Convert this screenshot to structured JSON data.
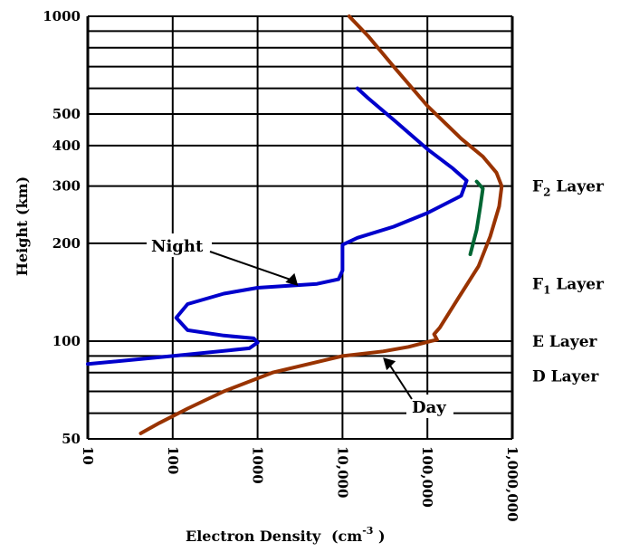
{
  "chart_data": {
    "type": "line",
    "xlabel": "Electron Density",
    "xlabel_unit_base": "(cm",
    "xlabel_unit_sup": "-3",
    "xlabel_unit_end": " )",
    "ylabel": "Height (km)",
    "x_scale": "log",
    "y_scale": "log",
    "xlim": [
      10,
      1000000
    ],
    "ylim": [
      50,
      1000
    ],
    "x_ticks": [
      {
        "value": 10,
        "label": "10"
      },
      {
        "value": 100,
        "label": "100"
      },
      {
        "value": 1000,
        "label": "1000"
      },
      {
        "value": 10000,
        "label": "10,000"
      },
      {
        "value": 100000,
        "label": "100,000"
      },
      {
        "value": 1000000,
        "label": "1,000,000"
      }
    ],
    "y_ticks": [
      {
        "value": 50,
        "label": "50"
      },
      {
        "value": 100,
        "label": "100"
      },
      {
        "value": 200,
        "label": "200"
      },
      {
        "value": 300,
        "label": "300"
      },
      {
        "value": 400,
        "label": "400"
      },
      {
        "value": 500,
        "label": "500"
      },
      {
        "value": 1000,
        "label": "1000"
      }
    ],
    "y_gridlines": [
      50,
      60,
      70,
      80,
      90,
      100,
      200,
      300,
      400,
      500,
      600,
      700,
      800,
      900,
      1000
    ],
    "grid": "horizontal",
    "series": [
      {
        "name": "Day",
        "color": "#993300",
        "points": [
          [
            42,
            52
          ],
          [
            70,
            56
          ],
          [
            150,
            62
          ],
          [
            400,
            70
          ],
          [
            1500,
            80
          ],
          [
            10000,
            90
          ],
          [
            30000,
            93
          ],
          [
            60000,
            96
          ],
          [
            110000,
            100
          ],
          [
            130000,
            101
          ],
          [
            120000,
            105
          ],
          [
            140000,
            110
          ],
          [
            250000,
            140
          ],
          [
            400000,
            170
          ],
          [
            550000,
            210
          ],
          [
            700000,
            260
          ],
          [
            750000,
            300
          ],
          [
            650000,
            330
          ],
          [
            450000,
            370
          ],
          [
            250000,
            420
          ],
          [
            100000,
            530
          ],
          [
            40000,
            700
          ],
          [
            20000,
            870
          ],
          [
            12000,
            1000
          ]
        ]
      },
      {
        "name": "Night",
        "color": "#0000cc",
        "points": [
          [
            10,
            85
          ],
          [
            100,
            90
          ],
          [
            800,
            95
          ],
          [
            1000,
            99
          ],
          [
            900,
            102
          ],
          [
            400,
            104
          ],
          [
            150,
            108
          ],
          [
            110,
            118
          ],
          [
            150,
            130
          ],
          [
            400,
            140
          ],
          [
            1000,
            146
          ],
          [
            5000,
            150
          ],
          [
            9000,
            155
          ],
          [
            10000,
            165
          ],
          [
            10000,
            198
          ],
          [
            15000,
            208
          ],
          [
            40000,
            225
          ],
          [
            100000,
            248
          ],
          [
            250000,
            280
          ],
          [
            290000,
            312
          ],
          [
            200000,
            340
          ],
          [
            100000,
            390
          ],
          [
            40000,
            480
          ],
          [
            20000,
            560
          ],
          [
            15000,
            600
          ]
        ]
      },
      {
        "name": "",
        "color": "#006633",
        "points": [
          [
            380000,
            310
          ],
          [
            450000,
            295
          ],
          [
            420000,
            260
          ],
          [
            380000,
            220
          ],
          [
            320000,
            185
          ]
        ]
      }
    ],
    "layer_labels": [
      {
        "name": "F",
        "sub": "2",
        "rest": " Layer",
        "height": 300
      },
      {
        "name": "F",
        "sub": "1",
        "rest": " Layer",
        "height": 150
      },
      {
        "name": "E Layer",
        "sub": "",
        "rest": "",
        "height": 100
      },
      {
        "name": "D Layer",
        "sub": "",
        "rest": "",
        "height": 78
      }
    ],
    "annotations": [
      {
        "text": "Night",
        "target": [
          3000,
          148
        ]
      },
      {
        "text": "Day",
        "target": [
          30000,
          89
        ]
      }
    ]
  }
}
